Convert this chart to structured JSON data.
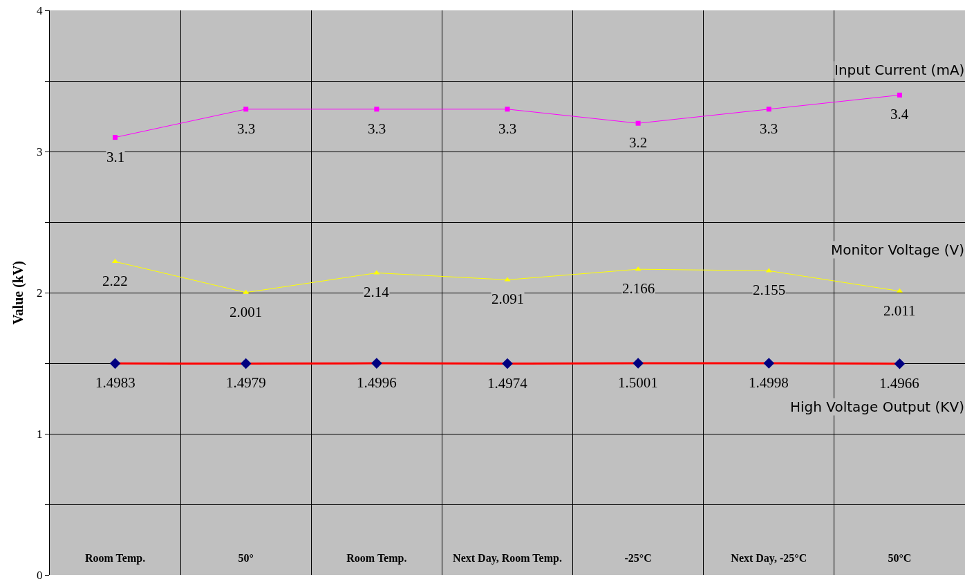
{
  "chart_data": {
    "type": "line",
    "ylabel": "Value (kV)",
    "categories": [
      "Room Temp.",
      "50°",
      "Room Temp.",
      "Next Day, Room Temp.",
      "-25°C",
      "Next Day, -25°C",
      "50°C"
    ],
    "series": [
      {
        "name": "Input Current (mA)",
        "color": "#ff00ff",
        "marker": "square",
        "values": [
          3.1,
          3.3,
          3.3,
          3.3,
          3.2,
          3.3,
          3.4
        ]
      },
      {
        "name": "Monitor Voltage (V)",
        "color": "#ffff00",
        "marker": "triangle",
        "values": [
          2.22,
          2.001,
          2.14,
          2.091,
          2.166,
          2.155,
          2.011
        ]
      },
      {
        "name": "High Voltage Output (KV)",
        "color": "#ff0000",
        "marker": "diamond",
        "colors": [
          "#000080",
          "#000080",
          "#000080",
          "#000080",
          "#000080",
          "#000080",
          "#000080"
        ],
        "values": [
          1.4983,
          1.4979,
          1.4996,
          1.4974,
          1.5001,
          1.4998,
          1.4966
        ]
      }
    ],
    "ylim": [
      0,
      4
    ],
    "yticks": [
      0,
      {
        "value": 0.5,
        "label": null
      },
      1,
      {
        "value": 1.5,
        "label": null
      },
      2,
      {
        "value": 2.5,
        "label": null
      },
      3,
      {
        "value": 3.5,
        "label": null
      },
      4
    ],
    "grid": true,
    "legend": false,
    "data_labels": true
  }
}
